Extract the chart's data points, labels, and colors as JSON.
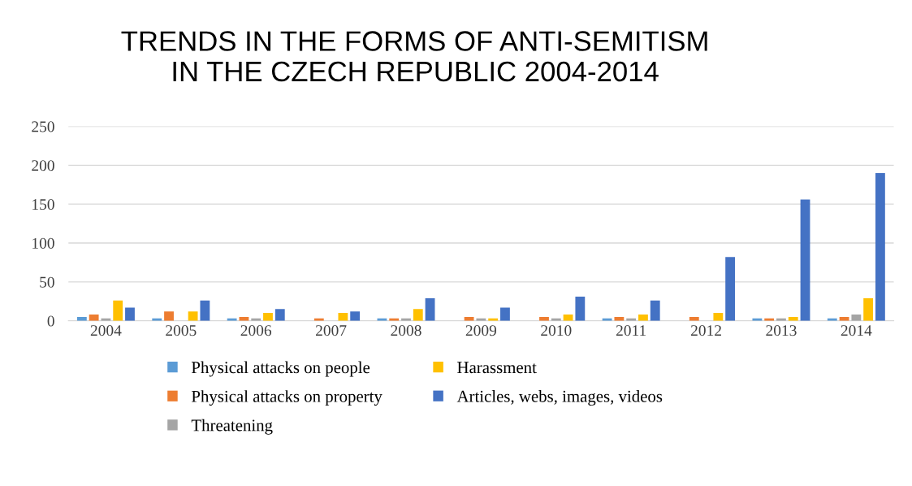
{
  "chart_data": {
    "type": "bar",
    "title": "TRENDS IN THE FORMS OF ANTI-SEMITISM\nIN THE CZECH REPUBLIC 2004-2014",
    "categories": [
      "2004",
      "2005",
      "2006",
      "2007",
      "2008",
      "2009",
      "2010",
      "2011",
      "2012",
      "2013",
      "2014"
    ],
    "series": [
      {
        "name": "Physical attacks on people",
        "color": "#5b9bd5",
        "values": [
          5,
          3,
          3,
          0,
          3,
          0,
          0,
          3,
          0,
          3,
          3
        ]
      },
      {
        "name": "Physical attacks on property",
        "color": "#ed7d31",
        "values": [
          8,
          12,
          5,
          3,
          3,
          5,
          5,
          5,
          5,
          3,
          5
        ]
      },
      {
        "name": "Threatening",
        "color": "#a5a5a5",
        "values": [
          3,
          0,
          3,
          0,
          3,
          3,
          3,
          3,
          0,
          3,
          8
        ]
      },
      {
        "name": "Harassment",
        "color": "#ffc000",
        "values": [
          26,
          12,
          10,
          10,
          15,
          3,
          8,
          8,
          10,
          5,
          29
        ]
      },
      {
        "name": "Articles, webs, images, videos",
        "color": "#4472c4",
        "values": [
          17,
          26,
          15,
          12,
          29,
          17,
          31,
          26,
          82,
          156,
          190
        ]
      }
    ],
    "ylim": [
      0,
      250
    ],
    "yticks": [
      0,
      50,
      100,
      150,
      200,
      250
    ],
    "grid": "y",
    "legend": "bottom"
  }
}
